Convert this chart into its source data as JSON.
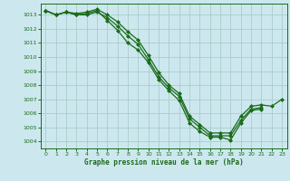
{
  "background_color": "#cce8ee",
  "grid_color": "#aacccc",
  "line_color": "#1a6b1a",
  "marker_color": "#1a6b1a",
  "xlabel": "Graphe pression niveau de la mer (hPa)",
  "ylim": [
    1003.5,
    1013.8
  ],
  "xlim": [
    -0.5,
    23.5
  ],
  "yticks": [
    1004,
    1005,
    1006,
    1007,
    1008,
    1009,
    1010,
    1011,
    1012,
    1013
  ],
  "xticks": [
    0,
    1,
    2,
    3,
    4,
    5,
    6,
    7,
    8,
    9,
    10,
    11,
    12,
    13,
    14,
    15,
    16,
    17,
    18,
    19,
    20,
    21,
    22,
    23
  ],
  "series": [
    [
      1013.3,
      1013.0,
      1013.2,
      1013.0,
      1013.1,
      1013.3,
      1012.6,
      1011.9,
      1011.0,
      1010.5,
      1009.6,
      1008.4,
      1007.6,
      1006.9,
      1005.3,
      1004.7,
      1004.3,
      1004.3,
      1004.1,
      1005.3,
      1006.2,
      1006.3,
      null,
      null
    ],
    [
      1013.3,
      1013.0,
      1013.2,
      1013.1,
      1013.2,
      1013.4,
      1013.0,
      1012.5,
      1011.8,
      1011.2,
      1010.1,
      1008.9,
      1008.0,
      1007.4,
      1005.8,
      1005.2,
      1004.6,
      1004.6,
      1004.6,
      1005.8,
      1006.5,
      1006.6,
      1006.5,
      1007.0
    ],
    [
      1013.3,
      1013.0,
      1013.2,
      1013.0,
      1013.0,
      1013.2,
      1012.8,
      1012.2,
      1011.5,
      1010.9,
      1009.8,
      1008.6,
      1007.8,
      1007.2,
      1005.6,
      1005.0,
      1004.4,
      1004.4,
      1004.4,
      1005.5,
      1006.3,
      1006.4,
      null,
      null
    ]
  ]
}
